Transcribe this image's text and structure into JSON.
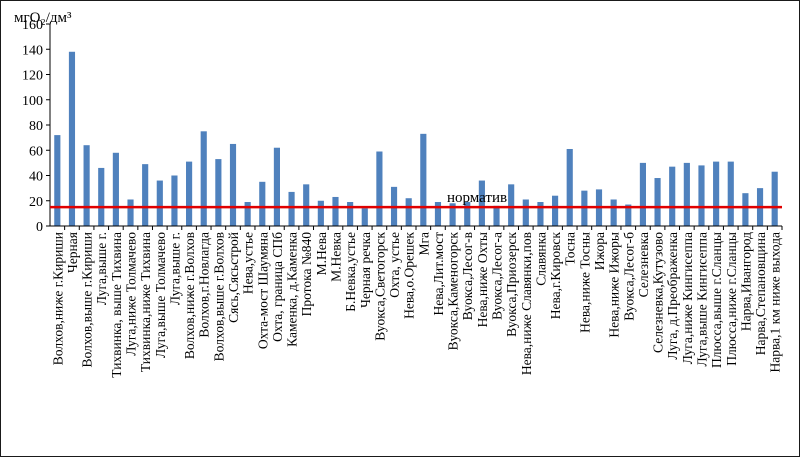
{
  "chart_data": {
    "type": "bar",
    "ylabel": "мгO₂/дм³",
    "ylim": [
      0,
      160
    ],
    "yticks": [
      0,
      20,
      40,
      60,
      80,
      100,
      120,
      140,
      160
    ],
    "grid": false,
    "legend": "none",
    "bar_color": "#4f81bd",
    "norm": {
      "label": "норматив",
      "value": 15,
      "color": "#e00000"
    },
    "categories": [
      "Волхов,ниже г.Кириши",
      "Черная",
      "Волхов,выше г.Кириши",
      "Луга,выше г.",
      "Тихвинка, выше Тихвина",
      "Луга,ниже Толмачево",
      "Тихвинка,ниже Тихвина",
      "Луга,выше Толмачево",
      "Луга,выше г.",
      "Волхов,ниже г.Волхов",
      "Волхов,г.Новлагда",
      "Волхов,выше г.Волхов",
      "Сясь,Сясьстрой",
      "Нева,устье",
      "Охта-мост Шаумяна",
      "Охта, граница СПб",
      "Каменка, д.Каменка",
      "Протока №840",
      "М.Нева",
      "М.Невка",
      "Б.Невка,устье",
      "Черная речка",
      "Вуокса,Светогорск",
      "Охта, устье",
      "Нева,о.Орешек",
      "Мга",
      "Нева,Лит.мост",
      "Вуокса,Каменогорск",
      "Вуокса,Лесог-в",
      "Нева,ниже Охты",
      "Вуокса,Лесог-а",
      "Вуокса,Приозерск",
      "Нева,ниже Славянки,пов",
      "Славянка",
      "Нева,г.Кировск",
      "Тосна",
      "Нева,ниже Тосны",
      "Ижора",
      "Нева,ниже Ижоры",
      "Вуокса,Лесог-б",
      "Селезневка",
      "Селезневка,Кутузово",
      "Луга, д.Преображенка",
      "Луга,ниже Кингисеппа",
      "Луга,выше Кингисеппа",
      "Плюсса,выше г.Сланцы",
      "Плюсса,ниже г.Сланцы",
      "Нарва,Ивангород",
      "Нарва,Степановщина",
      "Нарва,1 км ниже выхода"
    ],
    "values": [
      72,
      138,
      64,
      46,
      58,
      21,
      49,
      36,
      40,
      51,
      75,
      53,
      65,
      19,
      35,
      62,
      27,
      33,
      20,
      23,
      19,
      14,
      59,
      31,
      22,
      73,
      19,
      18,
      19,
      36,
      16,
      33,
      21,
      19,
      24,
      61,
      28,
      29,
      21,
      17,
      50,
      38,
      47,
      50,
      48,
      51,
      51,
      26,
      30,
      43
    ]
  }
}
